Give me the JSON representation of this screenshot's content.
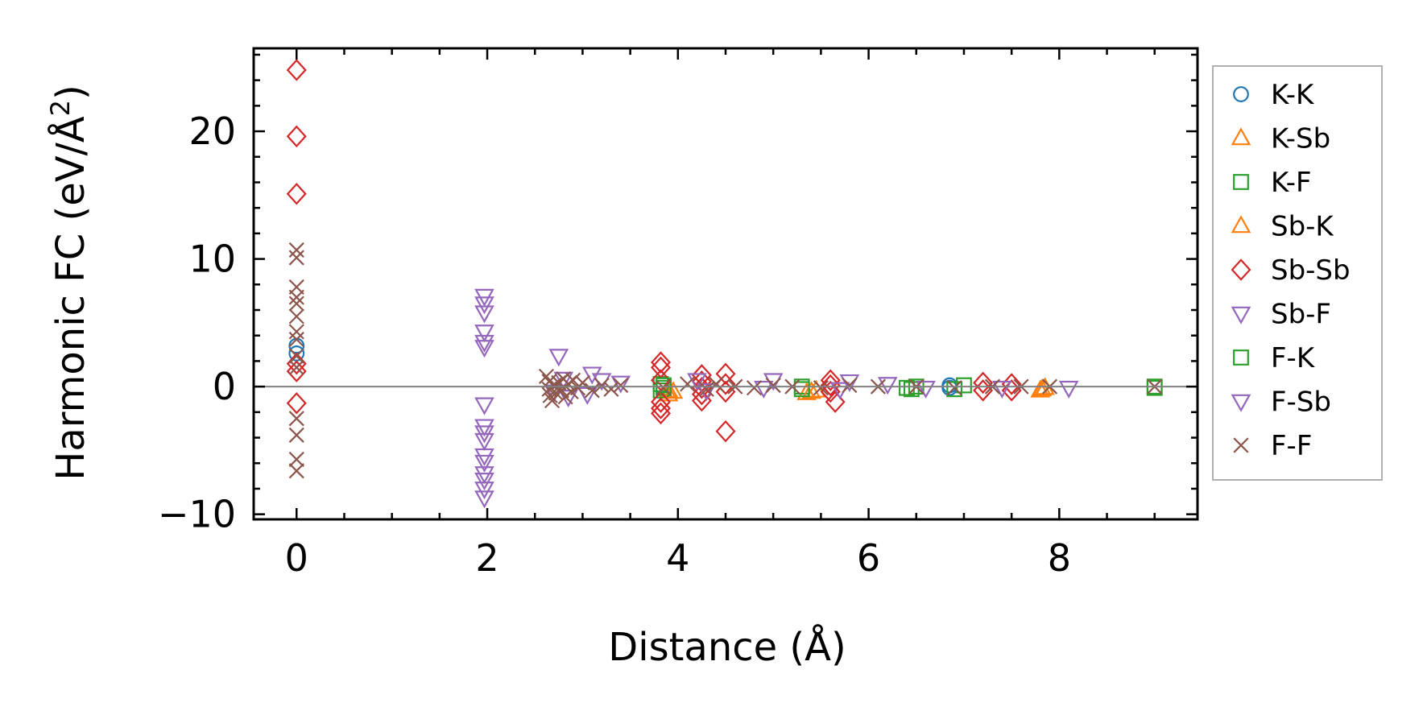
{
  "chart_data": {
    "type": "scatter",
    "title": "",
    "xlabel": "Distance (Å)",
    "ylabel_main": "Harmonic FC (eV/Å",
    "ylabel_sup": "2",
    "ylabel_close": ")",
    "xlim": [
      -0.45,
      9.45
    ],
    "ylim": [
      -10.4,
      26.5
    ],
    "xticks": [
      0,
      2,
      4,
      6,
      8
    ],
    "xtick_labels": [
      "0",
      "2",
      "4",
      "6",
      "8"
    ],
    "yticks": [
      -10,
      0,
      10,
      20
    ],
    "ytick_labels": [
      "−10",
      "0",
      "10",
      "20"
    ],
    "zero_line": true,
    "grid": false,
    "legend_position": "outside-right",
    "series": [
      {
        "name": "K-K",
        "marker": "circle",
        "color": "#1f77b4",
        "points": [
          [
            0,
            3.2
          ],
          [
            0,
            2.6
          ],
          [
            6.85,
            -0.1
          ],
          [
            6.85,
            0.1
          ]
        ]
      },
      {
        "name": "K-Sb",
        "marker": "triangle-up",
        "color": "#ff7f0e",
        "points": [
          [
            3.9,
            -0.6
          ],
          [
            3.9,
            -0.3
          ],
          [
            5.35,
            -0.5
          ],
          [
            5.45,
            -0.3
          ],
          [
            7.8,
            -0.3
          ],
          [
            7.85,
            -0.1
          ]
        ]
      },
      {
        "name": "K-F",
        "marker": "square",
        "color": "#2ca02c",
        "points": [
          [
            3.82,
            0.2
          ],
          [
            3.82,
            -0.3
          ],
          [
            3.85,
            -0.1
          ],
          [
            5.3,
            0.0
          ],
          [
            6.4,
            -0.1
          ],
          [
            6.5,
            0.0
          ],
          [
            7.0,
            0.1
          ],
          [
            9.0,
            -0.1
          ]
        ]
      },
      {
        "name": "Sb-K",
        "marker": "triangle-up",
        "color": "#ff7f0e",
        "points": [
          [
            3.95,
            -0.4
          ],
          [
            5.4,
            -0.4
          ],
          [
            7.82,
            -0.2
          ]
        ]
      },
      {
        "name": "Sb-Sb",
        "marker": "diamond",
        "color": "#d62728",
        "points": [
          [
            0,
            24.8
          ],
          [
            0,
            19.6
          ],
          [
            0,
            15.1
          ],
          [
            0,
            1.8
          ],
          [
            0,
            1.2
          ],
          [
            0,
            -1.3
          ],
          [
            3.82,
            1.9
          ],
          [
            3.82,
            1.5
          ],
          [
            3.82,
            0.5
          ],
          [
            3.82,
            -1.2
          ],
          [
            3.82,
            -1.7
          ],
          [
            3.82,
            -2.1
          ],
          [
            4.25,
            0.9
          ],
          [
            4.25,
            0.4
          ],
          [
            4.25,
            -0.1
          ],
          [
            4.25,
            -0.6
          ],
          [
            4.25,
            -1.1
          ],
          [
            4.5,
            1.0
          ],
          [
            4.5,
            0.2
          ],
          [
            4.5,
            -0.4
          ],
          [
            4.5,
            -3.5
          ],
          [
            5.6,
            0.5
          ],
          [
            5.6,
            0.1
          ],
          [
            5.6,
            -0.4
          ],
          [
            5.65,
            -1.2
          ],
          [
            7.2,
            0.3
          ],
          [
            7.2,
            -0.3
          ],
          [
            7.5,
            0.2
          ],
          [
            7.5,
            -0.3
          ]
        ]
      },
      {
        "name": "Sb-F",
        "marker": "triangle-down",
        "color": "#9467bd",
        "points": [
          [
            1.97,
            7.1
          ],
          [
            1.97,
            6.5
          ],
          [
            1.97,
            5.8
          ],
          [
            1.97,
            4.3
          ],
          [
            1.97,
            3.5
          ],
          [
            1.97,
            3.1
          ],
          [
            2.75,
            2.4
          ],
          [
            2.8,
            0.6
          ],
          [
            3.1,
            1.0
          ],
          [
            3.2,
            0.5
          ],
          [
            3.4,
            0.3
          ],
          [
            4.2,
            0.5
          ],
          [
            5.0,
            0.5
          ],
          [
            5.8,
            0.4
          ],
          [
            6.2,
            0.2
          ],
          [
            8.1,
            -0.1
          ]
        ]
      },
      {
        "name": "F-K",
        "marker": "square",
        "color": "#2ca02c",
        "points": [
          [
            3.85,
            0.1
          ],
          [
            5.3,
            -0.2
          ],
          [
            6.45,
            -0.2
          ],
          [
            6.9,
            -0.2
          ],
          [
            9.0,
            0.0
          ]
        ]
      },
      {
        "name": "F-Sb",
        "marker": "triangle-down",
        "color": "#9467bd",
        "points": [
          [
            1.97,
            -1.4
          ],
          [
            1.97,
            -3.1
          ],
          [
            1.97,
            -3.6
          ],
          [
            1.97,
            -4.2
          ],
          [
            1.97,
            -5.4
          ],
          [
            1.97,
            -5.9
          ],
          [
            1.97,
            -6.8
          ],
          [
            1.97,
            -7.3
          ],
          [
            1.97,
            -8.0
          ],
          [
            1.97,
            -8.7
          ],
          [
            2.7,
            -0.4
          ],
          [
            2.85,
            -0.8
          ],
          [
            3.05,
            -0.6
          ],
          [
            4.3,
            -0.3
          ],
          [
            4.9,
            -0.1
          ],
          [
            5.7,
            -0.2
          ],
          [
            6.6,
            -0.1
          ],
          [
            7.4,
            -0.1
          ]
        ]
      },
      {
        "name": "F-F",
        "marker": "x",
        "color": "#8c564b",
        "points": [
          [
            0,
            10.7
          ],
          [
            0,
            10.1
          ],
          [
            0,
            7.8
          ],
          [
            0,
            7.0
          ],
          [
            0,
            6.5
          ],
          [
            0,
            5.5
          ],
          [
            0,
            4.3
          ],
          [
            0,
            3.7
          ],
          [
            0,
            2.4
          ],
          [
            0,
            1.5
          ],
          [
            0,
            -2.5
          ],
          [
            0,
            -3.8
          ],
          [
            0,
            -5.7
          ],
          [
            0,
            -6.6
          ],
          [
            2.62,
            0.8
          ],
          [
            2.65,
            0.4
          ],
          [
            2.65,
            -0.2
          ],
          [
            2.66,
            -0.7
          ],
          [
            2.68,
            -1.1
          ],
          [
            2.7,
            0.1
          ],
          [
            2.72,
            -0.5
          ],
          [
            2.75,
            0.3
          ],
          [
            2.78,
            -0.3
          ],
          [
            2.8,
            0.6
          ],
          [
            2.82,
            -0.8
          ],
          [
            2.85,
            0.2
          ],
          [
            2.88,
            -0.4
          ],
          [
            2.9,
            0.5
          ],
          [
            2.95,
            -0.1
          ],
          [
            3.0,
            0.3
          ],
          [
            3.1,
            -0.3
          ],
          [
            3.2,
            0.1
          ],
          [
            3.3,
            -0.2
          ],
          [
            3.4,
            0.1
          ],
          [
            3.85,
            -0.1
          ],
          [
            4.1,
            0.2
          ],
          [
            4.3,
            -0.2
          ],
          [
            4.4,
            0.2
          ],
          [
            4.6,
            0.0
          ],
          [
            4.8,
            -0.1
          ],
          [
            5.0,
            0.1
          ],
          [
            5.2,
            0.0
          ],
          [
            5.5,
            -0.1
          ],
          [
            5.8,
            0.1
          ],
          [
            6.1,
            0.0
          ],
          [
            6.5,
            0.0
          ],
          [
            6.9,
            -0.1
          ],
          [
            7.3,
            0.0
          ],
          [
            7.6,
            0.0
          ],
          [
            7.9,
            0.0
          ],
          [
            9.0,
            0.0
          ]
        ]
      }
    ]
  }
}
